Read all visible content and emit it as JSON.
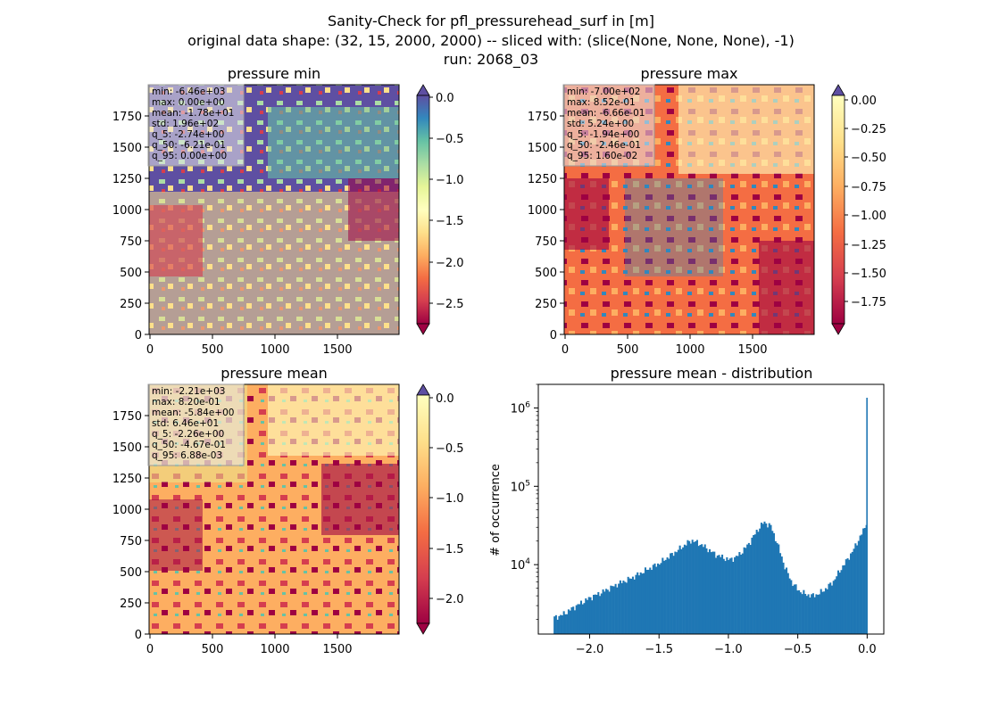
{
  "figure": {
    "title_lines": [
      "Sanity-Check for pfl_pressurehead_surf in [m]",
      "original data shape: (32, 15, 2000, 2000) -- sliced with: (slice(None, None, None), -1)",
      "run: 2068_03"
    ]
  },
  "panels": [
    {
      "id": "min",
      "title": "pressure min",
      "stats": [
        "min: -6.46e+03",
        "max: 0.00e+00",
        "mean: -1.78e+01",
        "std: 1.96e+02",
        "q_5: -2.74e+00",
        "q_50: -6.21e-01",
        "q_95: 0.00e+00"
      ],
      "colorbar_ticks": [
        "0.0",
        "−0.5",
        "−1.0",
        "−1.5",
        "−2.0",
        "−2.5"
      ],
      "colorbar_range": [
        -2.8,
        0.0
      ],
      "colorbar_extends": [
        "max",
        "min"
      ],
      "cmap": "Spectral"
    },
    {
      "id": "max",
      "title": "pressure max",
      "stats": [
        "min: -7.00e+02",
        "max: 8.52e-01",
        "mean: -6.66e-01",
        "std: 5.24e+00",
        "q_5: -1.94e+00",
        "q_50: -2.46e-01",
        "q_95: 1.60e-02"
      ],
      "colorbar_ticks": [
        "0.00",
        "−0.25",
        "−0.50",
        "−0.75",
        "−1.00",
        "−1.25",
        "−1.50",
        "−1.75"
      ],
      "colorbar_range": [
        -1.96,
        0.0
      ],
      "colorbar_extends": [
        "max",
        "min"
      ],
      "cmap": "Spectral"
    },
    {
      "id": "mean",
      "title": "pressure mean",
      "stats": [
        "min: -2.21e+03",
        "max: 8.20e-01",
        "mean: -5.84e+00",
        "std: 6.46e+01",
        "q_5: -2.26e+00",
        "q_50: -4.67e-01",
        "q_95: 6.88e-03"
      ],
      "colorbar_ticks": [
        "0.0",
        "−0.5",
        "−1.0",
        "−1.5",
        "−2.0"
      ],
      "colorbar_range": [
        -2.28,
        0.0
      ],
      "colorbar_extends": [
        "max",
        "min"
      ],
      "cmap": "Spectral"
    }
  ],
  "map_axes": {
    "x_ticks": [
      "0",
      "500",
      "1000",
      "1500"
    ],
    "y_ticks": [
      "0",
      "250",
      "500",
      "750",
      "1000",
      "1250",
      "1500",
      "1750"
    ],
    "x_range": [
      0,
      2000
    ],
    "y_range": [
      0,
      2000
    ]
  },
  "hist_panel": {
    "title": "pressure mean - distribution",
    "ylabel": "# of occurrence",
    "x_ticks": [
      "−2.0",
      "−1.5",
      "−1.0",
      "−0.5",
      "0.0"
    ],
    "y_tick_labels": [
      {
        "base": "10",
        "exp": "4",
        "value": 10000
      },
      {
        "base": "10",
        "exp": "5",
        "value": 100000
      },
      {
        "base": "10",
        "exp": "6",
        "value": 1000000
      }
    ],
    "bar_color": "#1f77b4"
  },
  "chart_data": {
    "type": "bar",
    "title": "pressure mean - distribution",
    "xlabel": "",
    "ylabel": "# of occurrence",
    "y_scale": "log",
    "xlim": [
      -2.37,
      0.12
    ],
    "ylim": [
      1300,
      2000000
    ],
    "bin_width": 0.0113,
    "x": [
      -2.26,
      -2.2,
      -2.1,
      -2.0,
      -1.9,
      -1.8,
      -1.7,
      -1.6,
      -1.5,
      -1.4,
      -1.3,
      -1.27,
      -1.2,
      -1.1,
      -1.0,
      -0.95,
      -0.9,
      -0.85,
      -0.8,
      -0.75,
      -0.7,
      -0.65,
      -0.6,
      -0.55,
      -0.5,
      -0.45,
      -0.4,
      -0.35,
      -0.3,
      -0.25,
      -0.2,
      -0.15,
      -0.1,
      -0.05,
      -0.02,
      -0.01,
      0.0
    ],
    "values": [
      2100,
      2300,
      3000,
      3800,
      4600,
      5700,
      6800,
      8500,
      10500,
      14000,
      19000,
      20500,
      18000,
      13500,
      11500,
      12500,
      15000,
      19500,
      27000,
      35000,
      31000,
      18000,
      9500,
      6000,
      4700,
      4200,
      4000,
      4300,
      5000,
      6100,
      8500,
      11500,
      16000,
      24000,
      30000,
      36000,
      1350000
    ]
  }
}
